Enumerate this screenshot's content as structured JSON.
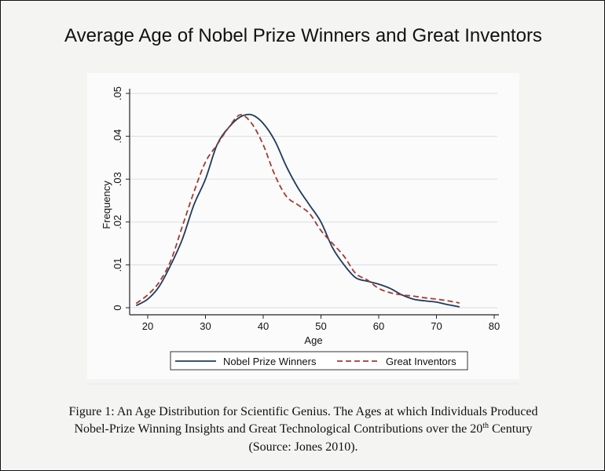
{
  "chart_data": {
    "type": "line",
    "title": "Average Age of Nobel Prize Winners and Great Inventors",
    "xlabel": "Age",
    "ylabel": "Frequency",
    "xlim": [
      17,
      81
    ],
    "ylim": [
      0,
      0.05
    ],
    "xticks": [
      20,
      30,
      40,
      50,
      60,
      70,
      80
    ],
    "xtick_labels": [
      "20",
      "30",
      "40",
      "50",
      "60",
      "70",
      "80"
    ],
    "yticks": [
      0,
      0.01,
      0.02,
      0.03,
      0.04,
      0.05
    ],
    "ytick_labels": [
      "0",
      ".01",
      ".02",
      ".03",
      ".04",
      ".05"
    ],
    "grid": "horizontal",
    "legend_position": "bottom",
    "x": [
      18,
      20,
      22,
      24,
      26,
      28,
      30,
      32,
      34,
      36,
      38,
      40,
      42,
      44,
      46,
      48,
      50,
      52,
      54,
      56,
      58,
      60,
      62,
      64,
      66,
      68,
      70,
      72,
      74
    ],
    "series": [
      {
        "name": "Nobel Prize Winners",
        "color": "#1f3b5a",
        "style": "solid",
        "values": [
          0.0005,
          0.002,
          0.005,
          0.01,
          0.016,
          0.024,
          0.03,
          0.038,
          0.042,
          0.0445,
          0.045,
          0.043,
          0.039,
          0.033,
          0.028,
          0.024,
          0.02,
          0.014,
          0.01,
          0.007,
          0.0062,
          0.0055,
          0.0045,
          0.003,
          0.002,
          0.0016,
          0.0013,
          0.0007,
          0.0002
        ]
      },
      {
        "name": "Great Inventors",
        "color": "#a33a33",
        "style": "dashed",
        "values": [
          0.001,
          0.003,
          0.006,
          0.011,
          0.019,
          0.027,
          0.034,
          0.038,
          0.042,
          0.045,
          0.043,
          0.038,
          0.031,
          0.026,
          0.024,
          0.022,
          0.018,
          0.015,
          0.012,
          0.008,
          0.0065,
          0.0045,
          0.0035,
          0.003,
          0.0027,
          0.0023,
          0.002,
          0.0016,
          0.0011
        ]
      }
    ]
  },
  "caption": {
    "line1": "Figure 1:  An Age Distribution for Scientific Genius.  The Ages at which Individuals Produced",
    "line2_pre": "Nobel-Prize Winning Insights and Great Technological Contributions over the 20",
    "line2_sup": "th",
    "line2_post": " Century",
    "line3": "(Source: Jones 2010)."
  }
}
